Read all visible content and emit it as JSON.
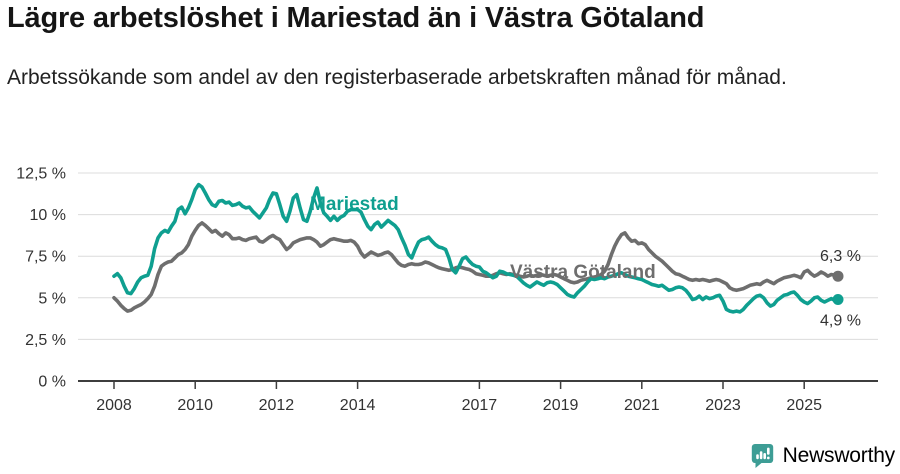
{
  "header": {
    "title": "Lägre arbetslöshet i Mariestad än i Västra Götaland",
    "subtitle": "Arbetssökande som andel av den registerbaserade arbetskraften månad för månad."
  },
  "footer": {
    "brand": "Newsworthy",
    "brand_color": "#38a39a",
    "logo_icon": "bar-chart-speech-bubble-icon"
  },
  "chart_data": {
    "type": "line",
    "title": "Lägre arbetslöshet i Mariestad än i Västra Götaland",
    "subtitle": "Arbetssökande som andel av den registerbaserade arbetskraften månad för månad.",
    "unit": "%",
    "x_interval": "monthly",
    "x_months": {
      "start": "2008-01",
      "end": "2025-11",
      "step_months": 1
    },
    "ylim": [
      0,
      12.5
    ],
    "grid": true,
    "legend_position": "inline-labels",
    "y_ticks": [
      {
        "label": "12,5 %",
        "value": 12.5
      },
      {
        "label": "10 %",
        "value": 10
      },
      {
        "label": "7,5 %",
        "value": 7.5
      },
      {
        "label": "5 %",
        "value": 5
      },
      {
        "label": "2,5 %",
        "value": 2.5
      },
      {
        "label": "0 %",
        "value": 0
      }
    ],
    "x_ticks": [
      {
        "label": "2008",
        "year": 2008
      },
      {
        "label": "2010",
        "year": 2010
      },
      {
        "label": "2012",
        "year": 2012
      },
      {
        "label": "2014",
        "year": 2014
      },
      {
        "label": "2017",
        "year": 2017
      },
      {
        "label": "2019",
        "year": 2019
      },
      {
        "label": "2021",
        "year": 2021
      },
      {
        "label": "2023",
        "year": 2023
      },
      {
        "label": "2025",
        "year": 2025
      }
    ],
    "series": [
      {
        "name": "Mariestad",
        "color": "#0f9f90",
        "end_label": "4,9 %",
        "end_value": 4.9,
        "values": [
          6.3,
          6.45,
          6.2,
          5.7,
          5.3,
          5.25,
          5.55,
          5.95,
          6.2,
          6.3,
          6.35,
          6.9,
          7.95,
          8.6,
          8.9,
          9.05,
          8.95,
          9.3,
          9.6,
          10.3,
          10.45,
          10.05,
          10.4,
          10.9,
          11.5,
          11.8,
          11.65,
          11.3,
          10.9,
          10.6,
          10.5,
          10.8,
          10.85,
          10.7,
          10.75,
          10.55,
          10.6,
          10.7,
          10.5,
          10.4,
          10.45,
          10.2,
          10.0,
          9.8,
          10.1,
          10.4,
          10.9,
          11.3,
          11.25,
          10.6,
          9.9,
          9.6,
          10.2,
          11.0,
          11.2,
          10.4,
          9.7,
          9.6,
          10.2,
          11.0,
          11.6,
          10.7,
          10.1,
          9.9,
          9.65,
          9.9,
          9.65,
          9.85,
          9.95,
          10.2,
          10.3,
          10.3,
          10.3,
          10.15,
          9.7,
          9.3,
          9.1,
          9.4,
          9.55,
          9.25,
          9.45,
          9.65,
          9.5,
          9.35,
          9.1,
          8.6,
          8.15,
          7.6,
          7.4,
          7.9,
          8.35,
          8.5,
          8.55,
          8.65,
          8.4,
          8.2,
          8.05,
          8.0,
          7.9,
          7.4,
          6.7,
          6.5,
          6.9,
          7.35,
          7.45,
          7.2,
          7.0,
          6.9,
          6.85,
          6.6,
          6.5,
          6.35,
          6.2,
          6.3,
          6.6,
          6.55,
          6.45,
          6.4,
          6.35,
          6.3,
          6.1,
          5.9,
          5.75,
          5.65,
          5.8,
          5.95,
          5.85,
          5.75,
          5.9,
          5.95,
          5.9,
          5.8,
          5.6,
          5.4,
          5.2,
          5.1,
          5.05,
          5.3,
          5.5,
          5.7,
          5.95,
          6.15,
          6.1,
          6.15,
          6.2,
          6.15,
          6.25,
          6.3,
          6.35,
          6.45,
          6.5,
          6.4,
          6.3,
          6.25,
          6.2,
          6.15,
          6.1,
          6.0,
          5.9,
          5.8,
          5.75,
          5.7,
          5.75,
          5.6,
          5.45,
          5.5,
          5.6,
          5.65,
          5.6,
          5.45,
          5.2,
          4.9,
          4.95,
          5.1,
          4.9,
          5.05,
          4.95,
          5.0,
          5.1,
          5.15,
          4.8,
          4.3,
          4.2,
          4.15,
          4.2,
          4.15,
          4.3,
          4.55,
          4.75,
          4.95,
          5.1,
          5.15,
          5.0,
          4.7,
          4.5,
          4.6,
          4.85,
          5.0,
          5.15,
          5.2,
          5.3,
          5.35,
          5.15,
          4.9,
          4.75,
          4.65,
          4.8,
          5.0,
          5.05,
          4.85,
          4.75,
          4.85,
          4.95,
          4.85,
          4.9
        ]
      },
      {
        "name": "Västra Götaland",
        "color": "#6e6e6e",
        "end_label": "6,3 %",
        "end_value": 6.3,
        "values": [
          5.0,
          4.8,
          4.55,
          4.35,
          4.2,
          4.25,
          4.4,
          4.5,
          4.6,
          4.75,
          4.95,
          5.2,
          5.7,
          6.4,
          6.9,
          7.05,
          7.15,
          7.2,
          7.4,
          7.6,
          7.7,
          7.9,
          8.2,
          8.7,
          9.05,
          9.35,
          9.5,
          9.35,
          9.15,
          8.95,
          9.05,
          8.85,
          8.7,
          8.9,
          8.8,
          8.55,
          8.55,
          8.6,
          8.5,
          8.45,
          8.55,
          8.6,
          8.65,
          8.4,
          8.35,
          8.5,
          8.65,
          8.75,
          8.6,
          8.5,
          8.2,
          7.9,
          8.05,
          8.3,
          8.4,
          8.5,
          8.55,
          8.6,
          8.6,
          8.5,
          8.35,
          8.1,
          8.2,
          8.35,
          8.5,
          8.55,
          8.5,
          8.45,
          8.4,
          8.4,
          8.45,
          8.35,
          8.1,
          7.7,
          7.45,
          7.6,
          7.75,
          7.65,
          7.55,
          7.6,
          7.7,
          7.75,
          7.6,
          7.35,
          7.1,
          6.95,
          6.9,
          7.0,
          7.05,
          7.0,
          7.0,
          7.05,
          7.15,
          7.1,
          7.0,
          6.9,
          6.8,
          6.75,
          6.7,
          6.65,
          6.7,
          6.8,
          6.85,
          6.8,
          6.75,
          6.7,
          6.6,
          6.45,
          6.4,
          6.35,
          6.3,
          6.3,
          6.35,
          6.45,
          6.5,
          6.45,
          6.4,
          6.45,
          6.4,
          6.35,
          6.3,
          6.25,
          6.3,
          6.35,
          6.3,
          6.35,
          6.4,
          6.35,
          6.3,
          6.35,
          6.4,
          6.35,
          6.25,
          6.15,
          6.05,
          5.95,
          5.9,
          5.95,
          6.05,
          6.1,
          6.15,
          6.2,
          6.25,
          6.3,
          6.4,
          6.6,
          7.0,
          7.6,
          8.1,
          8.5,
          8.8,
          8.9,
          8.6,
          8.4,
          8.45,
          8.25,
          8.3,
          8.2,
          7.9,
          7.7,
          7.5,
          7.35,
          7.2,
          7.0,
          6.8,
          6.6,
          6.45,
          6.4,
          6.3,
          6.2,
          6.1,
          6.05,
          6.1,
          6.05,
          6.1,
          6.05,
          6.0,
          6.05,
          6.1,
          6.05,
          5.95,
          5.85,
          5.6,
          5.5,
          5.45,
          5.5,
          5.55,
          5.65,
          5.75,
          5.8,
          5.85,
          5.8,
          5.95,
          6.05,
          5.95,
          5.85,
          6.0,
          6.1,
          6.2,
          6.25,
          6.3,
          6.35,
          6.3,
          6.2,
          6.55,
          6.65,
          6.45,
          6.3,
          6.4,
          6.55,
          6.45,
          6.3,
          6.4,
          6.35,
          6.3
        ]
      }
    ]
  }
}
